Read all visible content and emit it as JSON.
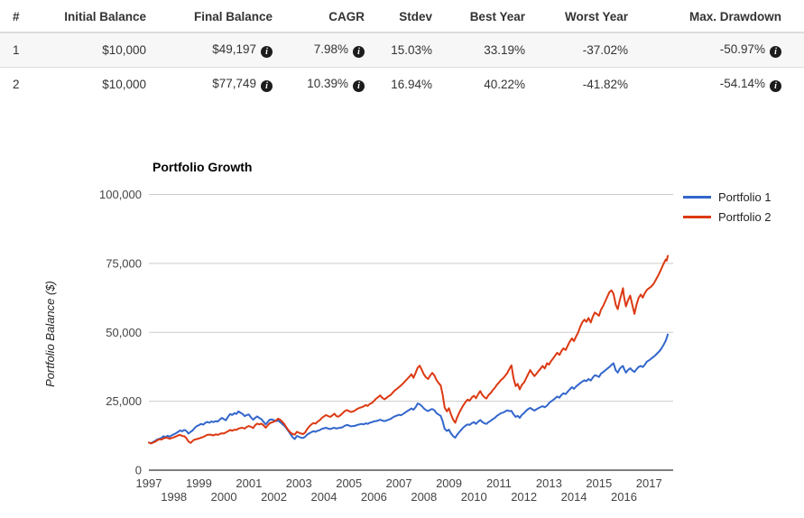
{
  "icons": {
    "info_glyph": "i"
  },
  "table": {
    "headers": [
      {
        "label": "#"
      },
      {
        "label": "Initial Balance"
      },
      {
        "label": "Final Balance"
      },
      {
        "label": "CAGR"
      },
      {
        "label": "Stdev"
      },
      {
        "label": "Best Year"
      },
      {
        "label": "Worst Year"
      },
      {
        "label": "Max. Drawdown"
      }
    ],
    "rows": [
      {
        "num": "1",
        "initial_balance": "$10,000",
        "final_balance": "$49,197",
        "cagr": "7.98%",
        "stdev": "15.03%",
        "best_year": "33.19%",
        "worst_year": "-37.02%",
        "max_drawdown": "-50.97%"
      },
      {
        "num": "2",
        "initial_balance": "$10,000",
        "final_balance": "$77,749",
        "cagr": "10.39%",
        "stdev": "16.94%",
        "best_year": "40.22%",
        "worst_year": "-41.82%",
        "max_drawdown": "-54.14%"
      }
    ]
  },
  "chart_data": {
    "type": "line",
    "title": "Portfolio Growth",
    "xlabel": "",
    "ylabel": "Portfolio Balance ($)",
    "legend_position": "right",
    "grid": true,
    "xlim": [
      1997.0,
      2017.75
    ],
    "ylim": [
      0,
      100000
    ],
    "colors": {
      "grid": "#cccccc",
      "axis": "#333333",
      "tick_text": "#444444"
    },
    "y_ticks": [
      {
        "value": 0,
        "label": "0"
      },
      {
        "value": 25000,
        "label": "25,000"
      },
      {
        "value": 50000,
        "label": "50,000"
      },
      {
        "value": 75000,
        "label": "75,000"
      },
      {
        "value": 100000,
        "label": "100,000"
      }
    ],
    "x_ticks": [
      {
        "year": 1997,
        "label": "1997",
        "row": 0
      },
      {
        "year": 1998,
        "label": "1998",
        "row": 1
      },
      {
        "year": 1999,
        "label": "1999",
        "row": 0
      },
      {
        "year": 2000,
        "label": "2000",
        "row": 1
      },
      {
        "year": 2001,
        "label": "2001",
        "row": 0
      },
      {
        "year": 2002,
        "label": "2002",
        "row": 1
      },
      {
        "year": 2003,
        "label": "2003",
        "row": 0
      },
      {
        "year": 2004,
        "label": "2004",
        "row": 1
      },
      {
        "year": 2005,
        "label": "2005",
        "row": 0
      },
      {
        "year": 2006,
        "label": "2006",
        "row": 1
      },
      {
        "year": 2007,
        "label": "2007",
        "row": 0
      },
      {
        "year": 2008,
        "label": "2008",
        "row": 1
      },
      {
        "year": 2009,
        "label": "2009",
        "row": 0
      },
      {
        "year": 2010,
        "label": "2010",
        "row": 1
      },
      {
        "year": 2011,
        "label": "2011",
        "row": 0
      },
      {
        "year": 2012,
        "label": "2012",
        "row": 1
      },
      {
        "year": 2013,
        "label": "2013",
        "row": 0
      },
      {
        "year": 2014,
        "label": "2014",
        "row": 1
      },
      {
        "year": 2015,
        "label": "2015",
        "row": 0
      },
      {
        "year": 2016,
        "label": "2016",
        "row": 1
      },
      {
        "year": 2017,
        "label": "2017",
        "row": 0
      }
    ],
    "series": [
      {
        "name": "Portfolio 1",
        "color": "#3366cc"
      },
      {
        "name": "Portfolio 2",
        "color": "#dc3912"
      }
    ],
    "points": [
      [
        1997.0,
        10000,
        10000
      ],
      [
        1997.08,
        9800,
        9700
      ],
      [
        1997.17,
        10200,
        10000
      ],
      [
        1997.25,
        10600,
        10300
      ],
      [
        1997.33,
        11100,
        10800
      ],
      [
        1997.42,
        11400,
        11200
      ],
      [
        1997.5,
        11700,
        11100
      ],
      [
        1997.58,
        12300,
        11500
      ],
      [
        1997.67,
        12000,
        11800
      ],
      [
        1997.75,
        12500,
        11700
      ],
      [
        1997.83,
        12100,
        11400
      ],
      [
        1997.92,
        12700,
        11700
      ],
      [
        1998.0,
        13000,
        11900
      ],
      [
        1998.08,
        13400,
        12200
      ],
      [
        1998.17,
        13900,
        12600
      ],
      [
        1998.25,
        14400,
        12800
      ],
      [
        1998.33,
        14100,
        12400
      ],
      [
        1998.42,
        14600,
        12300
      ],
      [
        1998.5,
        14200,
        11600
      ],
      [
        1998.58,
        13300,
        10400
      ],
      [
        1998.67,
        13900,
        9900
      ],
      [
        1998.75,
        14400,
        10600
      ],
      [
        1998.83,
        15300,
        11100
      ],
      [
        1998.92,
        16000,
        11300
      ],
      [
        1999.0,
        16300,
        11500
      ],
      [
        1999.08,
        16800,
        11800
      ],
      [
        1999.17,
        16500,
        12000
      ],
      [
        1999.25,
        17100,
        12400
      ],
      [
        1999.33,
        17500,
        12800
      ],
      [
        1999.42,
        17200,
        12900
      ],
      [
        1999.5,
        17700,
        12800
      ],
      [
        1999.58,
        17400,
        12600
      ],
      [
        1999.67,
        17800,
        13000
      ],
      [
        1999.75,
        17600,
        12800
      ],
      [
        1999.83,
        18300,
        13100
      ],
      [
        1999.92,
        19000,
        13400
      ],
      [
        2000.0,
        18500,
        13300
      ],
      [
        2000.08,
        18100,
        13700
      ],
      [
        2000.17,
        19400,
        14100
      ],
      [
        2000.25,
        20400,
        14600
      ],
      [
        2000.33,
        20000,
        14300
      ],
      [
        2000.42,
        20700,
        14700
      ],
      [
        2000.5,
        20400,
        14600
      ],
      [
        2000.58,
        21300,
        15100
      ],
      [
        2000.67,
        20800,
        15300
      ],
      [
        2000.75,
        20400,
        15400
      ],
      [
        2000.83,
        19600,
        15100
      ],
      [
        2000.92,
        20000,
        15700
      ],
      [
        2001.0,
        20200,
        16000
      ],
      [
        2001.08,
        19100,
        15700
      ],
      [
        2001.17,
        18300,
        15300
      ],
      [
        2001.25,
        19000,
        16300
      ],
      [
        2001.33,
        19500,
        16900
      ],
      [
        2001.42,
        18900,
        16600
      ],
      [
        2001.5,
        18500,
        16900
      ],
      [
        2001.58,
        17600,
        16300
      ],
      [
        2001.67,
        16600,
        15400
      ],
      [
        2001.75,
        17400,
        16200
      ],
      [
        2001.83,
        18300,
        17000
      ],
      [
        2001.92,
        18400,
        17300
      ],
      [
        2002.0,
        18100,
        17600
      ],
      [
        2002.08,
        17800,
        18000
      ],
      [
        2002.17,
        18000,
        18700
      ],
      [
        2002.25,
        17400,
        18300
      ],
      [
        2002.33,
        16800,
        17600
      ],
      [
        2002.42,
        16100,
        16700
      ],
      [
        2002.5,
        15200,
        15500
      ],
      [
        2002.58,
        14200,
        14500
      ],
      [
        2002.67,
        13000,
        13600
      ],
      [
        2002.75,
        11900,
        13100
      ],
      [
        2002.83,
        11300,
        12900
      ],
      [
        2002.92,
        12400,
        13900
      ],
      [
        2003.0,
        12100,
        13600
      ],
      [
        2003.08,
        11800,
        13300
      ],
      [
        2003.17,
        11700,
        13100
      ],
      [
        2003.25,
        12100,
        13700
      ],
      [
        2003.33,
        12900,
        14900
      ],
      [
        2003.42,
        13400,
        15900
      ],
      [
        2003.5,
        13800,
        16600
      ],
      [
        2003.58,
        14100,
        17100
      ],
      [
        2003.67,
        13900,
        16900
      ],
      [
        2003.75,
        14300,
        17600
      ],
      [
        2003.83,
        14500,
        18100
      ],
      [
        2003.92,
        15000,
        19000
      ],
      [
        2004.0,
        15200,
        19500
      ],
      [
        2004.08,
        15400,
        20000
      ],
      [
        2004.17,
        15100,
        19600
      ],
      [
        2004.25,
        14900,
        19300
      ],
      [
        2004.33,
        15200,
        19800
      ],
      [
        2004.42,
        15400,
        20500
      ],
      [
        2004.5,
        15100,
        19600
      ],
      [
        2004.58,
        15300,
        19400
      ],
      [
        2004.67,
        15400,
        20000
      ],
      [
        2004.75,
        15600,
        20700
      ],
      [
        2004.83,
        16100,
        21400
      ],
      [
        2004.92,
        16400,
        21800
      ],
      [
        2005.0,
        16200,
        21400
      ],
      [
        2005.08,
        15900,
        21100
      ],
      [
        2005.17,
        16000,
        21300
      ],
      [
        2005.25,
        16100,
        21700
      ],
      [
        2005.33,
        16400,
        22200
      ],
      [
        2005.42,
        16600,
        22600
      ],
      [
        2005.5,
        16800,
        22800
      ],
      [
        2005.58,
        16600,
        23100
      ],
      [
        2005.67,
        17000,
        23600
      ],
      [
        2005.75,
        16800,
        23300
      ],
      [
        2005.83,
        17200,
        24000
      ],
      [
        2005.92,
        17400,
        24400
      ],
      [
        2006.0,
        17700,
        25100
      ],
      [
        2006.08,
        17800,
        25900
      ],
      [
        2006.17,
        18000,
        26500
      ],
      [
        2006.25,
        18300,
        27100
      ],
      [
        2006.33,
        18000,
        26300
      ],
      [
        2006.42,
        17800,
        25700
      ],
      [
        2006.5,
        18000,
        26200
      ],
      [
        2006.58,
        18300,
        26800
      ],
      [
        2006.67,
        18600,
        27300
      ],
      [
        2006.75,
        19100,
        28100
      ],
      [
        2006.83,
        19500,
        28900
      ],
      [
        2006.92,
        19800,
        29500
      ],
      [
        2007.0,
        20100,
        30100
      ],
      [
        2007.08,
        19900,
        30700
      ],
      [
        2007.17,
        20400,
        31500
      ],
      [
        2007.25,
        20900,
        32300
      ],
      [
        2007.33,
        21400,
        33100
      ],
      [
        2007.42,
        21900,
        33900
      ],
      [
        2007.5,
        22400,
        34800
      ],
      [
        2007.58,
        21900,
        33500
      ],
      [
        2007.67,
        22900,
        35400
      ],
      [
        2007.75,
        24200,
        37200
      ],
      [
        2007.83,
        23900,
        37900
      ],
      [
        2007.92,
        23200,
        36300
      ],
      [
        2008.0,
        22400,
        34700
      ],
      [
        2008.08,
        21800,
        33700
      ],
      [
        2008.17,
        21400,
        33100
      ],
      [
        2008.25,
        21900,
        34300
      ],
      [
        2008.33,
        22200,
        35300
      ],
      [
        2008.42,
        21700,
        34300
      ],
      [
        2008.5,
        20700,
        32700
      ],
      [
        2008.58,
        20200,
        31700
      ],
      [
        2008.67,
        19700,
        30700
      ],
      [
        2008.75,
        17700,
        27300
      ],
      [
        2008.83,
        15000,
        22700
      ],
      [
        2008.92,
        14200,
        21300
      ],
      [
        2009.0,
        14700,
        22500
      ],
      [
        2009.08,
        13400,
        20300
      ],
      [
        2009.17,
        12300,
        18300
      ],
      [
        2009.25,
        11800,
        17200
      ],
      [
        2009.33,
        12900,
        19200
      ],
      [
        2009.42,
        13900,
        21000
      ],
      [
        2009.5,
        14700,
        22400
      ],
      [
        2009.58,
        15500,
        23600
      ],
      [
        2009.67,
        16200,
        24800
      ],
      [
        2009.75,
        16600,
        25600
      ],
      [
        2009.83,
        16400,
        25200
      ],
      [
        2009.92,
        17100,
        26400
      ],
      [
        2010.0,
        17400,
        27000
      ],
      [
        2010.08,
        16800,
        26100
      ],
      [
        2010.17,
        17600,
        27600
      ],
      [
        2010.25,
        18200,
        28700
      ],
      [
        2010.33,
        17500,
        27300
      ],
      [
        2010.42,
        17000,
        26400
      ],
      [
        2010.5,
        16800,
        26000
      ],
      [
        2010.58,
        17400,
        27200
      ],
      [
        2010.67,
        17900,
        28000
      ],
      [
        2010.75,
        18500,
        29000
      ],
      [
        2010.83,
        18900,
        29800
      ],
      [
        2010.92,
        19700,
        31000
      ],
      [
        2011.0,
        20200,
        31800
      ],
      [
        2011.08,
        20700,
        32700
      ],
      [
        2011.17,
        20900,
        33400
      ],
      [
        2011.25,
        21300,
        34300
      ],
      [
        2011.33,
        21700,
        35200
      ],
      [
        2011.42,
        21400,
        36800
      ],
      [
        2011.5,
        21500,
        38000
      ],
      [
        2011.58,
        20300,
        33500
      ],
      [
        2011.67,
        19300,
        30500
      ],
      [
        2011.75,
        19700,
        31300
      ],
      [
        2011.83,
        19000,
        29300
      ],
      [
        2011.92,
        20100,
        31000
      ],
      [
        2012.0,
        20700,
        31800
      ],
      [
        2012.08,
        21500,
        33200
      ],
      [
        2012.17,
        22200,
        34900
      ],
      [
        2012.25,
        22600,
        36300
      ],
      [
        2012.33,
        22100,
        35200
      ],
      [
        2012.42,
        21600,
        34100
      ],
      [
        2012.5,
        22100,
        35000
      ],
      [
        2012.58,
        22500,
        35900
      ],
      [
        2012.67,
        22900,
        36900
      ],
      [
        2012.75,
        23200,
        37800
      ],
      [
        2012.83,
        22800,
        36900
      ],
      [
        2012.92,
        23400,
        38800
      ],
      [
        2013.0,
        24300,
        38300
      ],
      [
        2013.08,
        24900,
        39500
      ],
      [
        2013.17,
        25500,
        40600
      ],
      [
        2013.25,
        26100,
        41600
      ],
      [
        2013.33,
        26700,
        42600
      ],
      [
        2013.42,
        26300,
        41800
      ],
      [
        2013.5,
        27300,
        43200
      ],
      [
        2013.58,
        27900,
        44200
      ],
      [
        2013.67,
        27600,
        43600
      ],
      [
        2013.75,
        28500,
        45200
      ],
      [
        2013.83,
        29300,
        46600
      ],
      [
        2013.92,
        30100,
        47800
      ],
      [
        2014.0,
        29500,
        46800
      ],
      [
        2014.08,
        30300,
        48400
      ],
      [
        2014.17,
        31000,
        50000
      ],
      [
        2014.25,
        31600,
        52000
      ],
      [
        2014.33,
        32100,
        53600
      ],
      [
        2014.42,
        32600,
        54600
      ],
      [
        2014.5,
        32300,
        53800
      ],
      [
        2014.58,
        33100,
        55200
      ],
      [
        2014.67,
        32500,
        53600
      ],
      [
        2014.75,
        33600,
        55600
      ],
      [
        2014.83,
        34400,
        57200
      ],
      [
        2014.92,
        34200,
        56600
      ],
      [
        2015.0,
        33800,
        56000
      ],
      [
        2015.08,
        35000,
        58200
      ],
      [
        2015.17,
        35600,
        59600
      ],
      [
        2015.25,
        36200,
        61200
      ],
      [
        2015.33,
        36800,
        62800
      ],
      [
        2015.42,
        37400,
        64600
      ],
      [
        2015.5,
        38200,
        65200
      ],
      [
        2015.58,
        38800,
        64000
      ],
      [
        2015.67,
        36200,
        60000
      ],
      [
        2015.75,
        35400,
        58400
      ],
      [
        2015.83,
        36800,
        61600
      ],
      [
        2015.92,
        37600,
        64600
      ],
      [
        2015.96,
        37800,
        66000
      ],
      [
        2016.0,
        36800,
        63000
      ],
      [
        2016.08,
        35400,
        59400
      ],
      [
        2016.17,
        36400,
        61800
      ],
      [
        2016.25,
        37000,
        63300
      ],
      [
        2016.33,
        36200,
        60000
      ],
      [
        2016.42,
        35600,
        56700
      ],
      [
        2016.5,
        36600,
        60000
      ],
      [
        2016.58,
        37400,
        62400
      ],
      [
        2016.67,
        37800,
        63700
      ],
      [
        2016.75,
        37400,
        62600
      ],
      [
        2016.83,
        38200,
        64200
      ],
      [
        2016.92,
        39400,
        65400
      ],
      [
        2017.0,
        39800,
        66000
      ],
      [
        2017.08,
        40400,
        66500
      ],
      [
        2017.17,
        41000,
        67400
      ],
      [
        2017.25,
        41600,
        68600
      ],
      [
        2017.33,
        42400,
        70000
      ],
      [
        2017.42,
        43200,
        71600
      ],
      [
        2017.5,
        44200,
        73200
      ],
      [
        2017.58,
        45400,
        74800
      ],
      [
        2017.67,
        47000,
        76400
      ],
      [
        2017.71,
        48000,
        76000
      ],
      [
        2017.75,
        49197,
        77749
      ]
    ]
  }
}
